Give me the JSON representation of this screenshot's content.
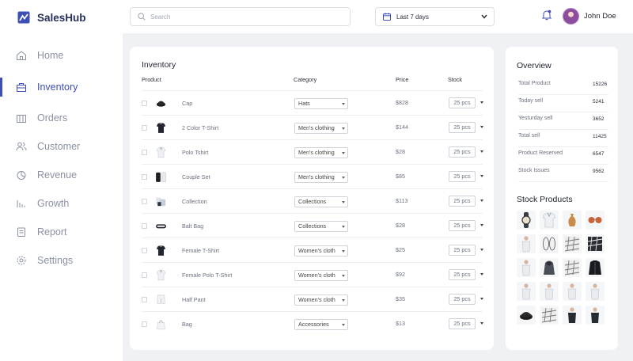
{
  "app": {
    "name": "SalesHub"
  },
  "colors": {
    "accent": "#3d4eb5",
    "text": "#2b2f3a",
    "muted": "#8a91a3",
    "background": "#f0f1f5"
  },
  "sidebar": {
    "items": [
      {
        "label": "Home",
        "icon": "home-icon",
        "active": false
      },
      {
        "label": "Inventory",
        "icon": "inventory-icon",
        "active": true
      },
      {
        "label": "Orders",
        "icon": "orders-icon",
        "active": false
      },
      {
        "label": "Customer",
        "icon": "customer-icon",
        "active": false
      },
      {
        "label": "Revenue",
        "icon": "revenue-icon",
        "active": false
      },
      {
        "label": "Growth",
        "icon": "growth-icon",
        "active": false
      },
      {
        "label": "Report",
        "icon": "report-icon",
        "active": false
      },
      {
        "label": "Settings",
        "icon": "settings-icon",
        "active": false
      }
    ]
  },
  "header": {
    "search_placeholder": "Search",
    "date_range": "Last 7 days",
    "user_name": "John Doe"
  },
  "inventory": {
    "title": "Inventory",
    "columns": {
      "product": "Product",
      "category": "Category",
      "price": "Price",
      "stock": "Stock"
    },
    "rows": [
      {
        "name": "Cap",
        "category": "Hats",
        "price": "$828",
        "stock": "25 pcs",
        "thumb": "cap"
      },
      {
        "name": "2 Color T-Shirt",
        "category": "Men's clothing",
        "price": "$144",
        "stock": "25 pcs",
        "thumb": "tshirt-dark"
      },
      {
        "name": "Polo Tshirt",
        "category": "Men's clothing",
        "price": "$28",
        "stock": "25 pcs",
        "thumb": "tshirt-light"
      },
      {
        "name": "Couple Set",
        "category": "Men's clothing",
        "price": "$85",
        "stock": "25 pcs",
        "thumb": "couple"
      },
      {
        "name": "Collection",
        "category": "Collections",
        "price": "$113",
        "stock": "25 pcs",
        "thumb": "collection"
      },
      {
        "name": "Balt Bag",
        "category": "Collections",
        "price": "$28",
        "stock": "25 pcs",
        "thumb": "bag"
      },
      {
        "name": "Female T-Shirt",
        "category": "Women's cloth",
        "price": "$25",
        "stock": "25 pcs",
        "thumb": "tshirt-dark"
      },
      {
        "name": "Female Polo T-Shirt",
        "category": "Women's cloth",
        "price": "$92",
        "stock": "25 pcs",
        "thumb": "tshirt-light"
      },
      {
        "name": "Half Pant",
        "category": "Women's cloth",
        "price": "$35",
        "stock": "25 pcs",
        "thumb": "pant"
      },
      {
        "name": "Bag",
        "category": "Accessories",
        "price": "$13",
        "stock": "25 pcs",
        "thumb": "tote"
      }
    ]
  },
  "overview": {
    "title": "Overview",
    "stats": [
      {
        "label": "Total Product",
        "value": "15226"
      },
      {
        "label": "Today sell",
        "value": "5241"
      },
      {
        "label": "Yesturday sell",
        "value": "3652"
      },
      {
        "label": "Total sell",
        "value": "11425"
      },
      {
        "label": "Product Reserved",
        "value": "6547"
      },
      {
        "label": "Stock Issues",
        "value": "9562"
      }
    ],
    "stock_products_title": "Stock Products",
    "stock_products": [
      "watch",
      "tshirt-light",
      "vase",
      "sunglasses",
      "person-light",
      "sandals",
      "pattern",
      "pattern-dark",
      "person-light",
      "hoodie-dark",
      "pattern",
      "jacket-dark",
      "person-light",
      "person-light",
      "person-light",
      "person-light",
      "cap",
      "pattern",
      "person-dark",
      "person-dark"
    ]
  }
}
